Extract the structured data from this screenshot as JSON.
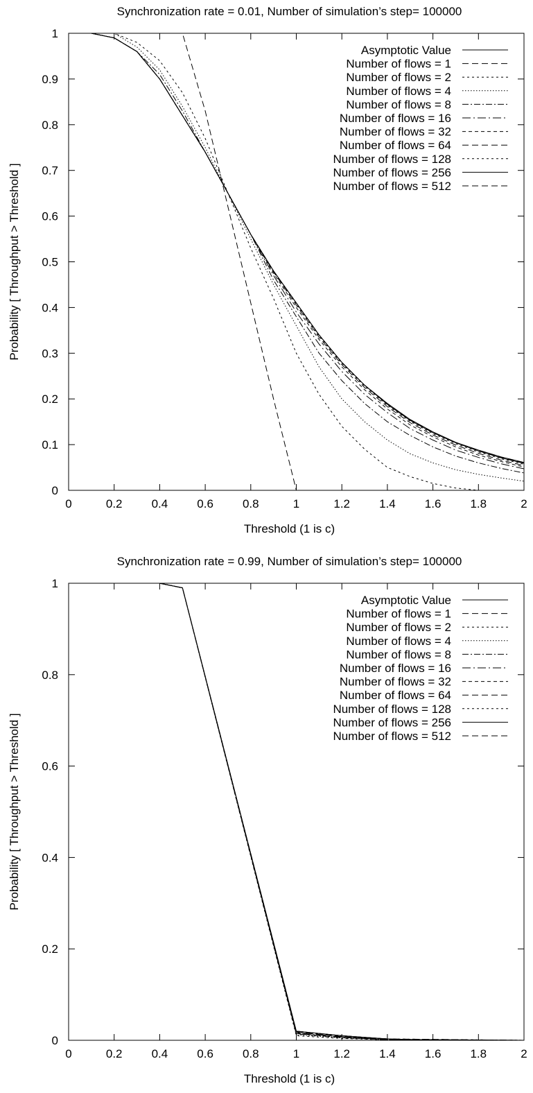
{
  "chart_data": [
    {
      "type": "line",
      "title": "Synchronization rate = 0.01, Number of simulation’s step= 100000",
      "xlabel": "Threshold (1 is c)",
      "ylabel": "Probability [ Throughput > Threshold ]",
      "xlim": [
        0,
        2
      ],
      "ylim": [
        0,
        1
      ],
      "xticks": [
        "0",
        "0.2",
        "0.4",
        "0.6",
        "0.8",
        "1",
        "1.2",
        "1.4",
        "1.6",
        "1.8",
        "2"
      ],
      "yticks": [
        "0",
        "0.1",
        "0.2",
        "0.3",
        "0.4",
        "0.5",
        "0.6",
        "0.7",
        "0.8",
        "0.9",
        "1"
      ],
      "grid": false,
      "legend_position": "top-right",
      "series": [
        {
          "name": "Asymptotic Value",
          "dash": "solid",
          "x": [
            0,
            0.1,
            0.2,
            0.3,
            0.4,
            0.5,
            0.6,
            0.7,
            0.8,
            0.9,
            1.0,
            1.1,
            1.2,
            1.3,
            1.4,
            1.5,
            1.6,
            1.7,
            1.8,
            1.9,
            2.0
          ],
          "y": [
            1.0,
            1.0,
            0.99,
            0.96,
            0.9,
            0.82,
            0.74,
            0.65,
            0.56,
            0.48,
            0.41,
            0.34,
            0.28,
            0.23,
            0.19,
            0.155,
            0.128,
            0.105,
            0.088,
            0.073,
            0.061
          ]
        },
        {
          "name": "Number of flows = 1",
          "dash": "dash",
          "x": [
            0,
            0.5,
            0.6,
            0.7,
            0.8,
            0.9,
            1.0
          ],
          "y": [
            1.0,
            1.0,
            0.83,
            0.62,
            0.41,
            0.2,
            0.0
          ]
        },
        {
          "name": "Number of flows = 2",
          "dash": "dotshort",
          "x": [
            0,
            0.1,
            0.2,
            0.3,
            0.4,
            0.5,
            0.6,
            0.7,
            0.8,
            0.9,
            1.0,
            1.1,
            1.2,
            1.3,
            1.4,
            1.5,
            1.6,
            1.7,
            1.8,
            1.9,
            2.0
          ],
          "y": [
            1.0,
            1.0,
            1.0,
            0.98,
            0.94,
            0.87,
            0.77,
            0.65,
            0.53,
            0.42,
            0.3,
            0.21,
            0.14,
            0.09,
            0.05,
            0.03,
            0.015,
            0.005,
            0.0,
            0.0,
            0.0
          ]
        },
        {
          "name": "Number of flows = 4",
          "dash": "dot",
          "x": [
            0,
            0.1,
            0.2,
            0.3,
            0.4,
            0.5,
            0.6,
            0.7,
            0.8,
            0.9,
            1.0,
            1.1,
            1.2,
            1.3,
            1.4,
            1.5,
            1.6,
            1.7,
            1.8,
            1.9,
            2.0
          ],
          "y": [
            1.0,
            1.0,
            1.0,
            0.97,
            0.92,
            0.84,
            0.75,
            0.65,
            0.55,
            0.45,
            0.36,
            0.27,
            0.2,
            0.15,
            0.11,
            0.08,
            0.06,
            0.045,
            0.035,
            0.027,
            0.02
          ]
        },
        {
          "name": "Number of flows = 8",
          "dash": "dashdot",
          "x": [
            0,
            0.1,
            0.2,
            0.3,
            0.4,
            0.5,
            0.6,
            0.7,
            0.8,
            0.9,
            1.0,
            1.1,
            1.2,
            1.3,
            1.4,
            1.5,
            1.6,
            1.7,
            1.8,
            1.9,
            2.0
          ],
          "y": [
            1.0,
            1.0,
            0.99,
            0.96,
            0.91,
            0.83,
            0.74,
            0.65,
            0.56,
            0.46,
            0.38,
            0.3,
            0.24,
            0.19,
            0.15,
            0.12,
            0.095,
            0.075,
            0.06,
            0.048,
            0.038
          ]
        },
        {
          "name": "Number of flows = 16",
          "dash": "dashdotlong",
          "x": [
            0,
            0.1,
            0.2,
            0.3,
            0.4,
            0.5,
            0.6,
            0.7,
            0.8,
            0.9,
            1.0,
            1.1,
            1.2,
            1.3,
            1.4,
            1.5,
            1.6,
            1.7,
            1.8,
            1.9,
            2.0
          ],
          "y": [
            1.0,
            1.0,
            0.99,
            0.96,
            0.9,
            0.82,
            0.74,
            0.65,
            0.56,
            0.47,
            0.39,
            0.32,
            0.26,
            0.21,
            0.17,
            0.135,
            0.11,
            0.088,
            0.072,
            0.058,
            0.047
          ]
        },
        {
          "name": "Number of flows = 32",
          "dash": "dashshort",
          "x": [
            0,
            0.1,
            0.2,
            0.3,
            0.4,
            0.5,
            0.6,
            0.7,
            0.8,
            0.9,
            1.0,
            1.1,
            1.2,
            1.3,
            1.4,
            1.5,
            1.6,
            1.7,
            1.8,
            1.9,
            2.0
          ],
          "y": [
            1.0,
            1.0,
            0.99,
            0.96,
            0.9,
            0.82,
            0.74,
            0.65,
            0.56,
            0.475,
            0.4,
            0.33,
            0.27,
            0.22,
            0.178,
            0.143,
            0.117,
            0.095,
            0.077,
            0.063,
            0.051
          ]
        },
        {
          "name": "Number of flows = 64",
          "dash": "dash",
          "x": [
            0,
            0.1,
            0.2,
            0.3,
            0.4,
            0.5,
            0.6,
            0.7,
            0.8,
            0.9,
            1.0,
            1.1,
            1.2,
            1.3,
            1.4,
            1.5,
            1.6,
            1.7,
            1.8,
            1.9,
            2.0
          ],
          "y": [
            1.0,
            1.0,
            0.99,
            0.96,
            0.9,
            0.82,
            0.74,
            0.65,
            0.56,
            0.478,
            0.405,
            0.335,
            0.275,
            0.225,
            0.183,
            0.148,
            0.121,
            0.099,
            0.081,
            0.066,
            0.054
          ]
        },
        {
          "name": "Number of flows = 128",
          "dash": "dotshort",
          "x": [
            0,
            0.1,
            0.2,
            0.3,
            0.4,
            0.5,
            0.6,
            0.7,
            0.8,
            0.9,
            1.0,
            1.1,
            1.2,
            1.3,
            1.4,
            1.5,
            1.6,
            1.7,
            1.8,
            1.9,
            2.0
          ],
          "y": [
            1.0,
            1.0,
            0.99,
            0.96,
            0.9,
            0.82,
            0.74,
            0.65,
            0.56,
            0.48,
            0.408,
            0.338,
            0.278,
            0.228,
            0.186,
            0.151,
            0.124,
            0.102,
            0.084,
            0.069,
            0.057
          ]
        },
        {
          "name": "Number of flows = 256",
          "dash": "solid",
          "x": [
            0,
            0.1,
            0.2,
            0.3,
            0.4,
            0.5,
            0.6,
            0.7,
            0.8,
            0.9,
            1.0,
            1.1,
            1.2,
            1.3,
            1.4,
            1.5,
            1.6,
            1.7,
            1.8,
            1.9,
            2.0
          ],
          "y": [
            1.0,
            1.0,
            0.99,
            0.96,
            0.9,
            0.82,
            0.74,
            0.65,
            0.56,
            0.48,
            0.41,
            0.34,
            0.28,
            0.23,
            0.188,
            0.153,
            0.126,
            0.104,
            0.086,
            0.071,
            0.059
          ]
        },
        {
          "name": "Number of flows = 512",
          "dash": "dash",
          "x": [
            0,
            0.1,
            0.2,
            0.3,
            0.4,
            0.5,
            0.6,
            0.7,
            0.8,
            0.9,
            1.0,
            1.1,
            1.2,
            1.3,
            1.4,
            1.5,
            1.6,
            1.7,
            1.8,
            1.9,
            2.0
          ],
          "y": [
            1.0,
            1.0,
            0.99,
            0.96,
            0.9,
            0.82,
            0.74,
            0.65,
            0.56,
            0.48,
            0.41,
            0.34,
            0.28,
            0.23,
            0.19,
            0.154,
            0.127,
            0.105,
            0.087,
            0.072,
            0.06
          ]
        }
      ]
    },
    {
      "type": "line",
      "title": "Synchronization rate = 0.99, Number of simulation’s step= 100000",
      "xlabel": "Threshold (1 is c)",
      "ylabel": "Probability [ Throughput > Threshold ]",
      "xlim": [
        0,
        2
      ],
      "ylim": [
        0,
        1
      ],
      "xticks": [
        "0",
        "0.2",
        "0.4",
        "0.6",
        "0.8",
        "1",
        "1.2",
        "1.4",
        "1.6",
        "1.8",
        "2"
      ],
      "yticks": [
        "0",
        "0.2",
        "0.4",
        "0.6",
        "0.8",
        "1"
      ],
      "grid": false,
      "legend_position": "top-right",
      "series": [
        {
          "name": "Asymptotic Value",
          "dash": "solid",
          "x": [
            0,
            0.4,
            0.5,
            1.0,
            1.2,
            1.4,
            1.6,
            2.0
          ],
          "y": [
            1.0,
            1.0,
            0.99,
            0.02,
            0.01,
            0.003,
            0.0,
            0.0
          ]
        },
        {
          "name": "Number of flows = 1",
          "dash": "dash",
          "x": [
            0,
            0.4,
            0.5,
            1.0,
            1.2,
            1.4,
            2.0
          ],
          "y": [
            1.0,
            1.0,
            0.99,
            0.015,
            0.006,
            0.001,
            0.0
          ]
        },
        {
          "name": "Number of flows = 2",
          "dash": "dotshort",
          "x": [
            0,
            0.4,
            0.5,
            1.0,
            1.2,
            1.4,
            2.0
          ],
          "y": [
            1.0,
            1.0,
            0.99,
            0.01,
            0.004,
            0.001,
            0.0
          ]
        },
        {
          "name": "Number of flows = 4",
          "dash": "dot",
          "x": [
            0,
            0.4,
            0.5,
            1.0,
            1.2,
            1.4,
            2.0
          ],
          "y": [
            1.0,
            1.0,
            0.99,
            0.012,
            0.005,
            0.001,
            0.0
          ]
        },
        {
          "name": "Number of flows = 8",
          "dash": "dashdot",
          "x": [
            0,
            0.4,
            0.5,
            1.0,
            1.2,
            1.4,
            2.0
          ],
          "y": [
            1.0,
            1.0,
            0.99,
            0.014,
            0.006,
            0.002,
            0.0
          ]
        },
        {
          "name": "Number of flows = 16",
          "dash": "dashdotlong",
          "x": [
            0,
            0.4,
            0.5,
            1.0,
            1.2,
            1.4,
            2.0
          ],
          "y": [
            1.0,
            1.0,
            0.99,
            0.016,
            0.007,
            0.002,
            0.0
          ]
        },
        {
          "name": "Number of flows = 32",
          "dash": "dashshort",
          "x": [
            0,
            0.4,
            0.5,
            1.0,
            1.2,
            1.4,
            2.0
          ],
          "y": [
            1.0,
            1.0,
            0.99,
            0.017,
            0.008,
            0.002,
            0.0
          ]
        },
        {
          "name": "Number of flows = 64",
          "dash": "dash",
          "x": [
            0,
            0.4,
            0.5,
            1.0,
            1.2,
            1.4,
            2.0
          ],
          "y": [
            1.0,
            1.0,
            0.99,
            0.018,
            0.008,
            0.003,
            0.0
          ]
        },
        {
          "name": "Number of flows = 128",
          "dash": "dotshort",
          "x": [
            0,
            0.4,
            0.5,
            1.0,
            1.2,
            1.4,
            2.0
          ],
          "y": [
            1.0,
            1.0,
            0.99,
            0.019,
            0.009,
            0.003,
            0.0
          ]
        },
        {
          "name": "Number of flows = 256",
          "dash": "solid",
          "x": [
            0,
            0.4,
            0.5,
            1.0,
            1.2,
            1.4,
            1.6,
            2.0
          ],
          "y": [
            1.0,
            1.0,
            0.99,
            0.02,
            0.01,
            0.003,
            0.0,
            0.0
          ]
        },
        {
          "name": "Number of flows = 512",
          "dash": "dash",
          "x": [
            0,
            0.4,
            0.5,
            1.0,
            1.2,
            1.4,
            1.6,
            2.0
          ],
          "y": [
            1.0,
            1.0,
            0.99,
            0.02,
            0.01,
            0.003,
            0.0,
            0.0
          ]
        }
      ]
    }
  ]
}
